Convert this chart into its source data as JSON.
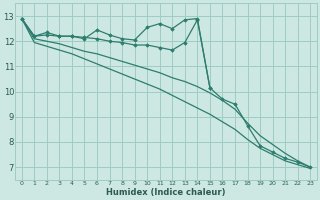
{
  "background_color": "#cde8e3",
  "grid_color": "#9ecdc4",
  "line_color": "#2e7d6e",
  "xlabel": "Humidex (Indice chaleur)",
  "xlim": [
    -0.5,
    23.5
  ],
  "ylim": [
    6.5,
    13.5
  ],
  "yticks": [
    7,
    8,
    9,
    10,
    11,
    12,
    13
  ],
  "xtick_labels": [
    "0",
    "1",
    "2",
    "3",
    "4",
    "5",
    "6",
    "7",
    "8",
    "9",
    "10",
    "11",
    "12",
    "13",
    "14",
    "15",
    "16",
    "17",
    "18",
    "19",
    "20",
    "21",
    "22",
    "23"
  ],
  "series": [
    {
      "x": [
        0,
        1,
        2,
        3,
        4,
        5,
        6,
        7,
        8,
        9,
        10,
        11,
        12,
        13,
        14,
        15
      ],
      "y": [
        12.9,
        12.2,
        12.35,
        12.2,
        12.2,
        12.1,
        12.45,
        12.25,
        12.1,
        12.05,
        12.55,
        12.7,
        12.5,
        12.85,
        12.9,
        10.15
      ],
      "marker": true
    },
    {
      "x": [
        0,
        1,
        2,
        3,
        4,
        5,
        6,
        7,
        8,
        9,
        10,
        11,
        12,
        13,
        14,
        15,
        16,
        17,
        18,
        19,
        20,
        21,
        22,
        23
      ],
      "y": [
        12.9,
        12.2,
        12.25,
        12.2,
        12.2,
        12.15,
        12.1,
        12.0,
        11.95,
        11.85,
        11.85,
        11.75,
        11.65,
        11.95,
        12.85,
        10.15,
        9.7,
        9.5,
        8.65,
        7.85,
        7.6,
        7.35,
        7.2,
        7.0
      ],
      "marker": true
    },
    {
      "x": [
        0,
        1,
        2,
        3,
        4,
        5,
        6,
        7,
        8,
        9,
        10,
        11,
        12,
        13,
        14,
        15,
        16,
        17,
        18,
        19,
        20,
        21,
        22,
        23
      ],
      "y": [
        12.9,
        12.1,
        12.0,
        11.9,
        11.75,
        11.6,
        11.5,
        11.35,
        11.2,
        11.05,
        10.9,
        10.75,
        10.55,
        10.4,
        10.2,
        9.95,
        9.65,
        9.3,
        8.75,
        8.25,
        7.9,
        7.55,
        7.25,
        7.0
      ],
      "marker": false
    },
    {
      "x": [
        0,
        1,
        2,
        3,
        4,
        5,
        6,
        7,
        8,
        9,
        10,
        11,
        12,
        13,
        14,
        15,
        16,
        17,
        18,
        19,
        20,
        21,
        22,
        23
      ],
      "y": [
        12.9,
        11.95,
        11.8,
        11.65,
        11.5,
        11.3,
        11.1,
        10.9,
        10.7,
        10.5,
        10.3,
        10.1,
        9.85,
        9.6,
        9.35,
        9.1,
        8.8,
        8.5,
        8.1,
        7.75,
        7.5,
        7.25,
        7.1,
        6.95
      ],
      "marker": false
    }
  ]
}
